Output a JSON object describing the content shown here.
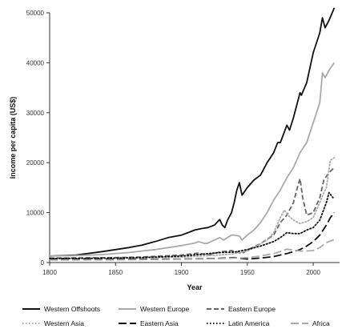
{
  "chart_data": {
    "type": "line",
    "title": "",
    "xlabel": "Year",
    "ylabel": "Income per capita (US$)",
    "xlim": [
      1800,
      2020
    ],
    "ylim": [
      0,
      50000
    ],
    "x_ticks": [
      1800,
      1850,
      1900,
      1950,
      2000
    ],
    "y_ticks": [
      0,
      10000,
      20000,
      30000,
      40000,
      50000
    ],
    "grid": false,
    "legend_position": "bottom",
    "series": [
      {
        "name": "Western Offshoots",
        "color": "#111111",
        "dash": "solid",
        "x": [
          1800,
          1820,
          1840,
          1860,
          1870,
          1880,
          1890,
          1900,
          1905,
          1910,
          1915,
          1920,
          1925,
          1929,
          1931,
          1933,
          1935,
          1938,
          1940,
          1942,
          1944,
          1946,
          1950,
          1955,
          1960,
          1965,
          1970,
          1973,
          1975,
          1980,
          1982,
          1985,
          1990,
          1991,
          1995,
          2000,
          2005,
          2007,
          2009,
          2012,
          2016
        ],
        "y": [
          1300,
          1500,
          2200,
          3000,
          3500,
          4200,
          5000,
          5500,
          6000,
          6500,
          6800,
          7000,
          7500,
          8600,
          7500,
          7000,
          8500,
          10000,
          12000,
          14500,
          16000,
          13500,
          15000,
          16500,
          17500,
          20000,
          22000,
          24000,
          24000,
          27500,
          26500,
          29000,
          34000,
          33500,
          36000,
          42000,
          46000,
          49000,
          47000,
          48500,
          51000
        ]
      },
      {
        "name": "Western Europe",
        "color": "#aaaaaa",
        "dash": "solid",
        "x": [
          1800,
          1820,
          1840,
          1860,
          1870,
          1880,
          1890,
          1900,
          1910,
          1913,
          1918,
          1920,
          1925,
          1929,
          1932,
          1935,
          1938,
          1940,
          1944,
          1946,
          1950,
          1955,
          1960,
          1965,
          1970,
          1975,
          1980,
          1985,
          1990,
          1995,
          2000,
          2005,
          2007,
          2009,
          2012,
          2016
        ],
        "y": [
          1300,
          1400,
          1600,
          2000,
          2300,
          2600,
          3000,
          3400,
          3900,
          4200,
          3800,
          3900,
          4500,
          5000,
          4500,
          5000,
          5500,
          5500,
          5300,
          4500,
          5500,
          6500,
          8000,
          10000,
          12500,
          14500,
          17000,
          19000,
          22000,
          24000,
          28000,
          32000,
          38000,
          37000,
          38500,
          40000
        ]
      },
      {
        "name": "Eastern Europe",
        "color": "#666666",
        "dash": "dashed",
        "x": [
          1800,
          1850,
          1870,
          1900,
          1913,
          1920,
          1929,
          1938,
          1946,
          1950,
          1960,
          1970,
          1975,
          1980,
          1985,
          1988,
          1990,
          1992,
          1995,
          2000,
          2005,
          2008,
          2012,
          2016
        ],
        "y": [
          900,
          1000,
          1100,
          1500,
          1900,
          1500,
          2100,
          2400,
          1800,
          2500,
          3800,
          5500,
          8000,
          9500,
          12000,
          15000,
          16800,
          13000,
          9500,
          10000,
          13000,
          16500,
          18000,
          19000
        ]
      },
      {
        "name": "Western Asia",
        "color": "#aaaaaa",
        "dash": "dotted",
        "x": [
          1800,
          1850,
          1900,
          1913,
          1929,
          1938,
          1950,
          1955,
          1960,
          1965,
          1970,
          1975,
          1978,
          1981,
          1985,
          1990,
          1995,
          2000,
          2005,
          2008,
          2010,
          2013,
          2016
        ],
        "y": [
          800,
          900,
          1100,
          1300,
          1500,
          1700,
          2300,
          3000,
          3800,
          4500,
          6000,
          9000,
          10500,
          9500,
          8500,
          7800,
          8200,
          9000,
          12000,
          14000,
          15000,
          20500,
          21000
        ]
      },
      {
        "name": "Eastern Asia",
        "color": "#111111",
        "dash": "longdash",
        "x": [
          1800,
          1850,
          1900,
          1913,
          1929,
          1940,
          1950,
          1960,
          1970,
          1975,
          1980,
          1985,
          1990,
          1995,
          2000,
          2005,
          2010,
          2013,
          2016
        ],
        "y": [
          700,
          650,
          700,
          750,
          850,
          1000,
          700,
          900,
          1200,
          1500,
          1800,
          2200,
          2600,
          3300,
          4200,
          5500,
          7500,
          9000,
          10000
        ]
      },
      {
        "name": "Latin America",
        "color": "#111111",
        "dash": "dotted",
        "x": [
          1800,
          1850,
          1870,
          1900,
          1913,
          1929,
          1940,
          1950,
          1960,
          1970,
          1975,
          1980,
          1985,
          1990,
          1995,
          2000,
          2005,
          2010,
          2012,
          2015
        ],
        "y": [
          800,
          900,
          1000,
          1300,
          1600,
          2000,
          2100,
          2600,
          3300,
          4200,
          5000,
          6000,
          5800,
          5800,
          6500,
          7000,
          8500,
          12000,
          14000,
          13000
        ]
      },
      {
        "name": "Africa",
        "color": "#aaaaaa",
        "dash": "longdash",
        "x": [
          1800,
          1850,
          1900,
          1913,
          1929,
          1940,
          1950,
          1960,
          1970,
          1975,
          1980,
          1985,
          1990,
          1995,
          2000,
          2005,
          2010,
          2016
        ],
        "y": [
          500,
          550,
          650,
          700,
          800,
          900,
          1000,
          1300,
          1800,
          2200,
          2700,
          2500,
          2300,
          2300,
          2400,
          3000,
          4000,
          4600
        ]
      }
    ]
  }
}
